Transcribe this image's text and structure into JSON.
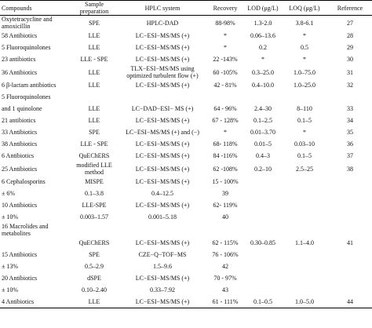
{
  "table": {
    "header": [
      "Compounds",
      "Sample preparation",
      "HPLC system",
      "Recovery",
      "LOD (μg/L)",
      "LOQ (μg/L)",
      "Reference"
    ],
    "rows": [
      [
        "Oxytetracycline and amoxicillin",
        "SPE",
        "HPLC-DAD",
        "88-98%",
        "1.3-2.0",
        "3.8-6.1",
        "27"
      ],
      [
        "58 Antibiotics",
        "LLE",
        "LC−ESI−MS/MS (+)",
        "*",
        "0.06–13.6",
        "*",
        "28"
      ],
      [
        "5 Fluoroquinolones",
        "LLE",
        "LC−ESI−MS/MS (+)",
        "*",
        "0.2",
        "0.5",
        "29"
      ],
      [
        "23 antibiotics",
        "LLE - SPE",
        "LC−ESI−MS/MS (+)",
        "22 -143%",
        "*",
        "*",
        "30"
      ],
      [
        "36 Antibiotics",
        "LLE",
        "TLX−ESI−MS/MS using optimized turbulent flow (+)",
        "60 -105%",
        "0.3–25.0",
        "1.0–75.0",
        "31"
      ],
      [
        "6 β-lactam antibiotics",
        "LLE",
        "LC−ESI−MS/MS (+)",
        "42 - 81%",
        "0.4–10.0",
        "1.0–25.0",
        "32"
      ],
      [
        "5 Fluoroquinolones",
        null,
        null,
        null,
        null,
        null,
        null
      ],
      [
        "and 1 quinolone",
        "LLE",
        "LC−DAD−ESI− MS (+)",
        "64 - 96%",
        "2.4–30",
        "8–110",
        "33"
      ],
      [
        "21 antibiotics",
        "LLE",
        "LC−ESI−MS/MS (+)",
        "67 - 128%",
        "0.1–2.5",
        "0.1–5",
        "34"
      ],
      [
        "33 Antibiotics",
        "SPE",
        "LC−ESI−MS/MS (+) and (−)",
        "*",
        "0.01–3.70",
        "*",
        "35"
      ],
      [
        "38 Antibiotics",
        "LLE - SPE",
        "LC−ESI−MS/MS (+)",
        "68- 118%",
        "0.01–5",
        "0.03–10",
        "36"
      ],
      [
        "6 Antibiotics",
        "QuEChERS",
        "LC−ESI−MS/MS (+)",
        "84 -116%",
        "0.4–3",
        "0.1–5",
        "37"
      ],
      [
        "25 Antibiotics",
        "modified LLE method",
        "LC−ESI−MS/MS (+)",
        "62 -108%",
        "0.2–10",
        "2.5–25",
        "38"
      ],
      [
        "6 Cephalosporins",
        "MISPE",
        "LC−ESI−MS/MS (+)",
        "15 - 100%",
        null,
        null,
        null
      ],
      [
        "± 6%",
        "0.1–3.8",
        "0.4–12.5",
        "39",
        null,
        null,
        null
      ],
      [
        "10 Antibiotics",
        "LLE-SPE",
        "LC−ESI−MS/MS (+)",
        "62- 119%",
        null,
        null,
        null
      ],
      [
        "± 10%",
        "0.003–1.57",
        "0.001–5.18",
        "40",
        null,
        null,
        null
      ],
      [
        "16 Macrolides and metabolites",
        null,
        null,
        null,
        null,
        null,
        null
      ],
      [
        null,
        "QuEChERS",
        "LC−ESI−MS/MS (+)",
        "62 - 115%",
        "0.30–0.85",
        "1.1–4.0",
        "41"
      ],
      [
        "15 Antibiotics",
        "SPE",
        "CZE−Q−TOF−MS",
        "76 - 106%",
        null,
        null,
        null
      ],
      [
        "± 13%",
        "0.5–2.9",
        "1.5–9.6",
        "42",
        null,
        null,
        null
      ],
      [
        "20 Antibiotics",
        "dSPE",
        "LC−ESI−MS/MS (+)",
        "70 - 97%",
        null,
        null,
        null
      ],
      [
        "± 10%",
        "0.10–2.40",
        "0.33–7.92",
        "43",
        null,
        null,
        null
      ],
      [
        "4 Antibiotics",
        "LLE",
        "LC−ESI−MS/MS (+)",
        "61 - 111%",
        "0.1–0.5",
        "1.0–5.0",
        "44"
      ]
    ]
  }
}
